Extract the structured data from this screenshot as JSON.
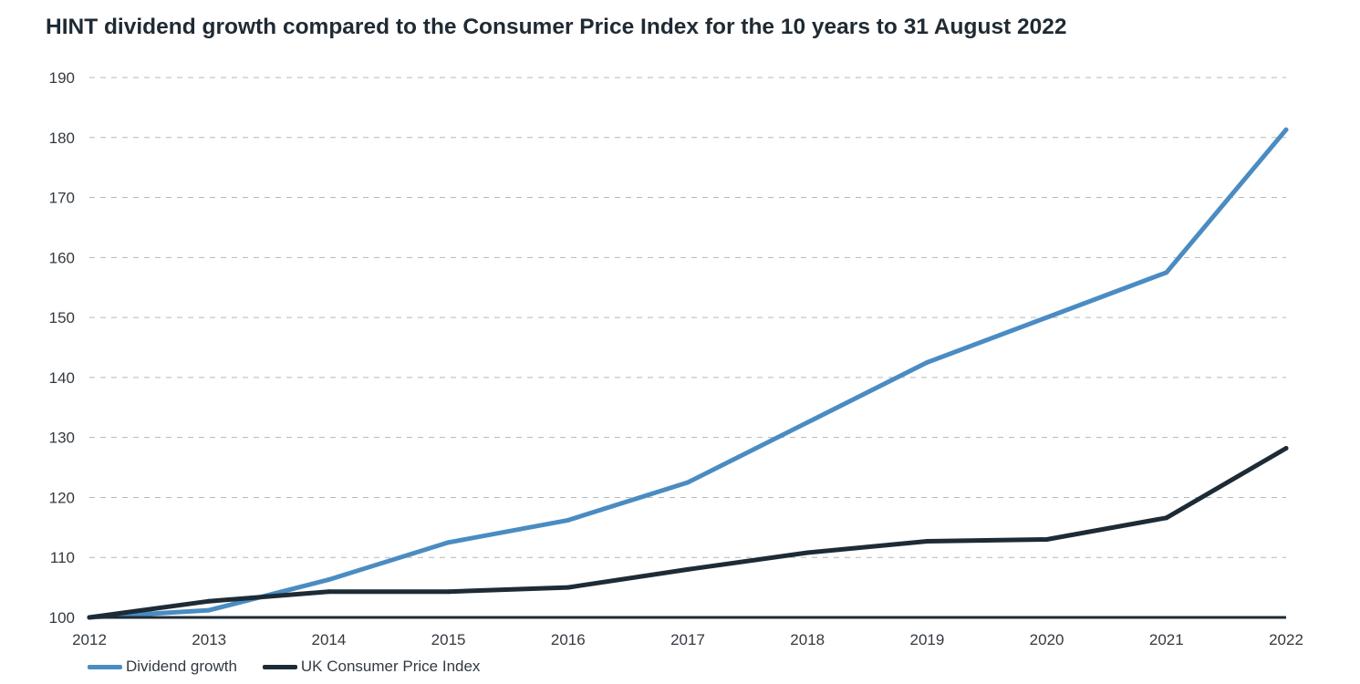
{
  "chart_data": {
    "type": "line",
    "title": "HINT dividend growth compared to the Consumer Price Index for the 10 years to 31 August 2022",
    "xlabel": "",
    "ylabel": "",
    "x": [
      "2012",
      "2013",
      "2014",
      "2015",
      "2016",
      "2017",
      "2018",
      "2019",
      "2020",
      "2021",
      "2022"
    ],
    "ylim": [
      100,
      190
    ],
    "yticks": [
      "100",
      "110",
      "120",
      "130",
      "140",
      "150",
      "160",
      "170",
      "180",
      "190"
    ],
    "grid": true,
    "legend_position": "bottom-left",
    "series": [
      {
        "name": "Dividend growth",
        "color": "#4a8cc2",
        "values": [
          100,
          101.2,
          106.3,
          112.5,
          116.2,
          122.5,
          132.5,
          142.5,
          150,
          157.5,
          181.3
        ]
      },
      {
        "name": "UK Consumer Price Index",
        "color": "#1d2b36",
        "values": [
          100,
          102.7,
          104.3,
          104.3,
          105,
          108,
          110.8,
          112.7,
          113,
          116.6,
          128.2
        ]
      }
    ]
  }
}
